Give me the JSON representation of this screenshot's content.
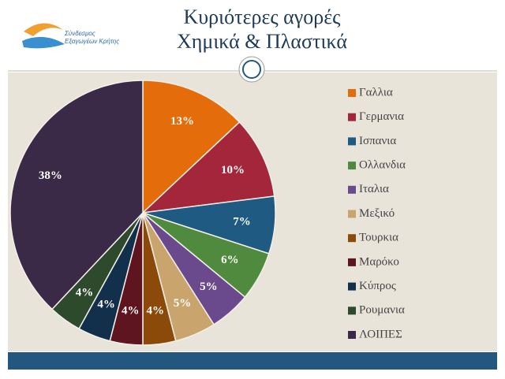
{
  "slide": {
    "title_lines": [
      "Κυριότερες αγορές",
      "Χημικά & Πλαστικά"
    ],
    "logo_lines": [
      "Σύνδεσμος",
      "Εξαγωγέων Κρήτης"
    ]
  },
  "chart_data": {
    "type": "pie",
    "categories": [
      "Γαλλια",
      "Γερμανια",
      "Ισπανια",
      "Ολλανδια",
      "Ιταλια",
      "Μεξικό",
      "Τουρκια",
      "Μαρόκο",
      "Κύπρος",
      "Ρουμανια",
      "ΛΟΙΠΕΣ"
    ],
    "values": [
      13,
      10,
      7,
      6,
      5,
      5,
      4,
      4,
      4,
      4,
      38
    ],
    "value_labels": [
      "13%",
      "10%",
      "7%",
      "6%",
      "5%",
      "5%",
      "4%",
      "4%",
      "4%",
      "4%",
      "38%"
    ],
    "colors": [
      "#e46c0a",
      "#a3263a",
      "#1e5a82",
      "#4f8a3f",
      "#6a4a8c",
      "#c9a46c",
      "#8c4a0a",
      "#5e1520",
      "#12304c",
      "#2e4a2c",
      "#3a2a48"
    ],
    "legend": "right"
  }
}
